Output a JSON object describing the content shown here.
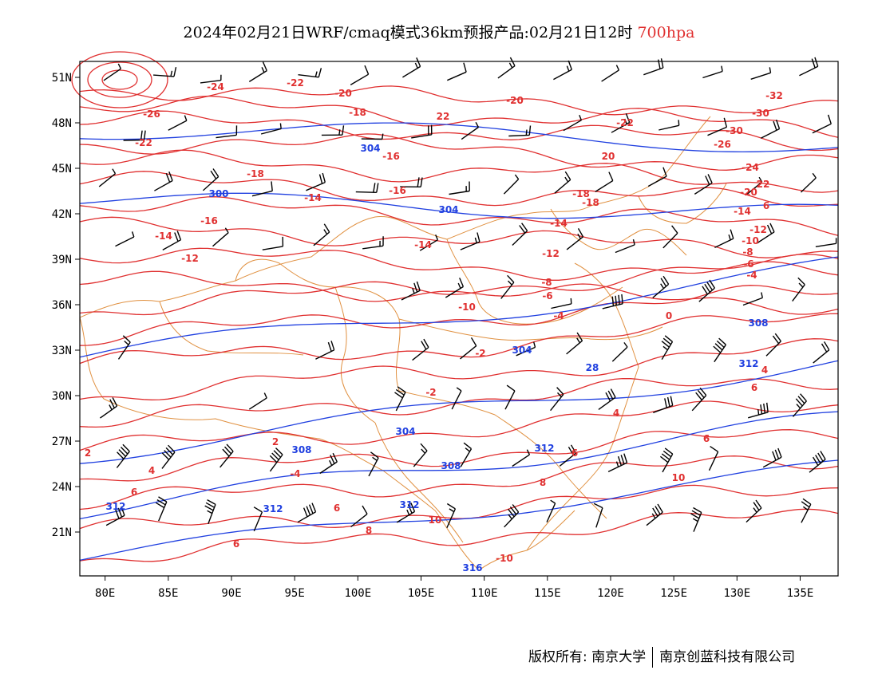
{
  "title": {
    "main": "2024年02月21日WRF/cmaq模式36km预报产品:02月21日12时",
    "level": "700hpa"
  },
  "colors": {
    "temperature": "#e03030",
    "height": "#2040e0",
    "boundary": "#e09040",
    "wind": "#000000"
  },
  "axes": {
    "lat_labels": [
      "51N",
      "48N",
      "45N",
      "42N",
      "39N",
      "36N",
      "33N",
      "30N",
      "27N",
      "24N",
      "21N"
    ],
    "lon_labels": [
      "80E",
      "85E",
      "90E",
      "95E",
      "100E",
      "105E",
      "110E",
      "115E",
      "120E",
      "125E",
      "130E",
      "135E"
    ]
  },
  "temperature_labels": [
    "-24",
    "-22",
    "-20",
    "-18",
    "-16",
    "-14",
    "-12",
    "-10",
    "-8",
    "-6",
    "-4",
    "-2",
    "0",
    "2",
    "4",
    "6",
    "8",
    "10",
    "-26",
    "-30",
    "-32"
  ],
  "height_labels": [
    "300",
    "304",
    "308",
    "312",
    "316"
  ],
  "footer": {
    "copyright": "版权所有: 南京大学",
    "partner": "南京创蓝科技有限公司"
  }
}
